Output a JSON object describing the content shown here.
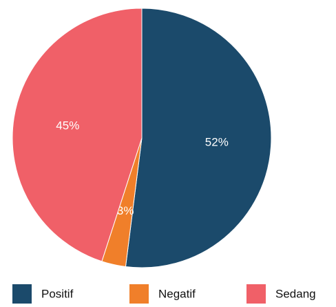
{
  "chart_data": {
    "type": "pie",
    "categories": [
      "Positif",
      "Negatif",
      "Sedang"
    ],
    "values": [
      52,
      3,
      45
    ],
    "value_labels": [
      "52%",
      "3%",
      "45%"
    ],
    "colors": [
      "#1b4a6b",
      "#f07f2a",
      "#f06068"
    ],
    "legend": "bottom"
  }
}
